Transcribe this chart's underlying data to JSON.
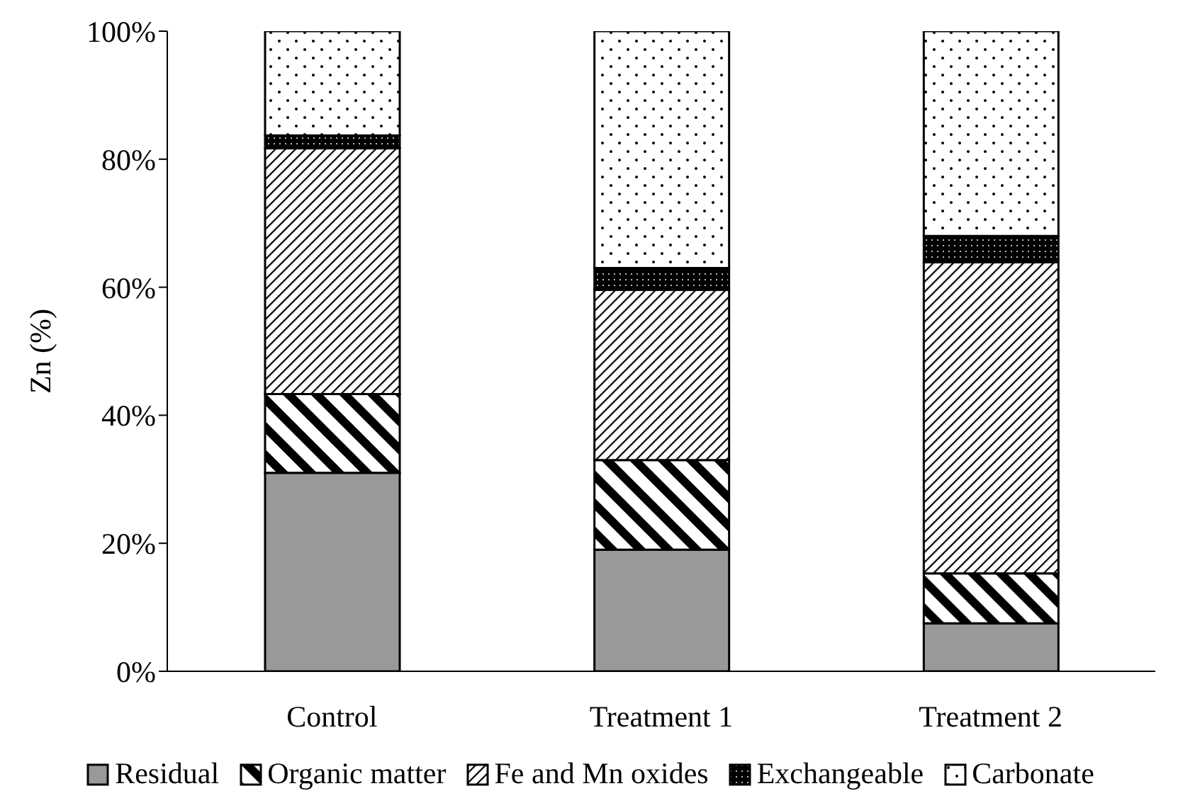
{
  "chart_data": {
    "type": "bar",
    "stacked": true,
    "ylabel": "Zn (%)",
    "categories": [
      "Control",
      "Treatment 1",
      "Treatment 2"
    ],
    "series": [
      {
        "name": "Residual",
        "color": "#999999",
        "values": [
          31,
          19,
          7.5
        ]
      },
      {
        "name": "Organic matter",
        "color": "#000000",
        "values": [
          12.3,
          14,
          7.8
        ]
      },
      {
        "name": "Fe and Mn oxides",
        "color": "#000000",
        "values": [
          38.4,
          26.6,
          48.6
        ]
      },
      {
        "name": "Exchangeable",
        "color": "#000000",
        "values": [
          2,
          3.4,
          4.1
        ]
      },
      {
        "name": "Carbonate",
        "color": "#000000",
        "values": [
          16.3,
          37,
          32
        ]
      }
    ],
    "ylim": [
      0,
      100
    ],
    "yticks": [
      {
        "value": 0,
        "label": "0%"
      },
      {
        "value": 20,
        "label": "20%"
      },
      {
        "value": 40,
        "label": "40%"
      },
      {
        "value": 60,
        "label": "60%"
      },
      {
        "value": 80,
        "label": "80%"
      },
      {
        "value": 100,
        "label": "100%"
      }
    ],
    "grid": false,
    "legend": "bottom"
  }
}
